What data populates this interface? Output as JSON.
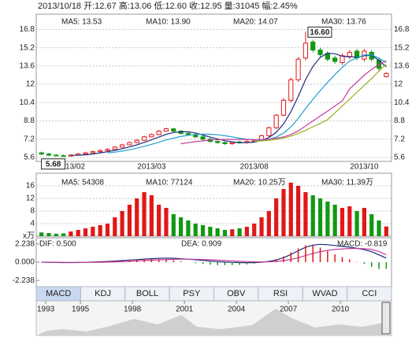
{
  "header": "2013/10/18 开:12.67 高:13.06 低:12.60 收:12.95 量:31045 幅:2.45%",
  "tabs": [
    "MACD",
    "KDJ",
    "BOLL",
    "PSY",
    "OBV",
    "RSI",
    "WVAD",
    "CCI"
  ],
  "timeline": {
    "xlim": [
      1992.45,
      2012.95
    ],
    "xticks": [
      1993,
      1995,
      1998,
      2001,
      2004,
      2007,
      2010
    ]
  },
  "chart_data": [
    {
      "type": "candlestick",
      "up_color": "#e01818",
      "down_color": "#119911",
      "tick_color": "#e01818",
      "grid": true,
      "categories": [
        null,
        null,
        null,
        null,
        "2013/02",
        null,
        null,
        null,
        null,
        null,
        null,
        null,
        null,
        null,
        null,
        "2013/03",
        null,
        null,
        null,
        null,
        null,
        null,
        null,
        null,
        null,
        null,
        null,
        null,
        null,
        "2013/08",
        null,
        null,
        null,
        null,
        null,
        null,
        null,
        null,
        null,
        null,
        null,
        null,
        null,
        null,
        "2013/10",
        null,
        null,
        null
      ],
      "open": [
        6.0,
        5.9,
        5.8,
        5.75,
        5.72,
        5.8,
        5.9,
        6.0,
        6.1,
        6.2,
        6.3,
        6.5,
        6.7,
        6.9,
        7.1,
        7.4,
        7.6,
        7.9,
        8.1,
        7.9,
        7.7,
        7.6,
        7.4,
        7.2,
        7.0,
        6.9,
        6.8,
        6.95,
        6.9,
        7.0,
        7.1,
        7.5,
        8.2,
        9.3,
        10.6,
        12.4,
        14.3,
        15.7,
        15.0,
        14.7,
        14.3,
        13.9,
        14.4,
        14.9,
        14.2,
        14.8,
        14.1,
        12.67
      ],
      "high": [
        6.1,
        6.0,
        5.9,
        5.85,
        5.9,
        6.0,
        6.1,
        6.2,
        6.3,
        6.4,
        6.6,
        6.8,
        7.0,
        7.2,
        7.5,
        7.7,
        8.0,
        8.2,
        8.2,
        8.0,
        7.8,
        7.7,
        7.5,
        7.3,
        7.1,
        7.0,
        7.0,
        7.05,
        7.1,
        7.2,
        7.6,
        8.3,
        9.4,
        10.8,
        12.6,
        14.4,
        16.6,
        15.9,
        15.2,
        14.9,
        14.5,
        14.7,
        15.0,
        15.1,
        15.1,
        15.0,
        14.3,
        13.06
      ],
      "low": [
        5.8,
        5.7,
        5.7,
        5.68,
        5.7,
        5.75,
        5.85,
        5.95,
        6.05,
        6.15,
        6.25,
        6.45,
        6.65,
        6.85,
        7.05,
        7.35,
        7.55,
        7.85,
        7.8,
        7.6,
        7.5,
        7.3,
        7.1,
        6.9,
        6.8,
        6.7,
        6.7,
        6.8,
        6.8,
        6.9,
        7.0,
        7.4,
        8.1,
        9.2,
        10.4,
        12.2,
        14.1,
        14.8,
        14.3,
        14.0,
        13.8,
        13.7,
        14.2,
        14.1,
        14.0,
        14.0,
        13.2,
        12.6
      ],
      "close": [
        5.9,
        5.8,
        5.75,
        5.7,
        5.8,
        5.9,
        6.0,
        6.1,
        6.2,
        6.3,
        6.5,
        6.7,
        6.9,
        7.1,
        7.4,
        7.6,
        7.9,
        8.1,
        7.9,
        7.7,
        7.6,
        7.4,
        7.2,
        7.0,
        6.9,
        6.8,
        6.9,
        6.9,
        7.0,
        7.1,
        7.5,
        8.2,
        9.3,
        10.6,
        12.4,
        14.2,
        15.6,
        15.0,
        14.6,
        14.2,
        14.0,
        14.5,
        14.8,
        14.3,
        14.9,
        14.2,
        13.4,
        12.95
      ],
      "ylim": [
        5.25,
        18.0
      ],
      "yticks": [
        5.6,
        7.2,
        8.8,
        10.4,
        12.0,
        13.6,
        15.2,
        16.8
      ],
      "annotations": [
        {
          "label": "16.60",
          "value": 16.6,
          "at": "high"
        },
        {
          "label": "5.68",
          "value": 5.68,
          "at": "low"
        }
      ],
      "series": [
        {
          "name": "MA5: 13.53",
          "color": "#1c2a7a",
          "values": [
            null,
            null,
            null,
            null,
            5.79,
            5.79,
            5.83,
            5.9,
            6.0,
            6.1,
            6.22,
            6.36,
            6.52,
            6.7,
            6.92,
            7.14,
            7.38,
            7.62,
            7.78,
            7.84,
            7.84,
            7.74,
            7.56,
            7.38,
            7.22,
            7.06,
            6.96,
            6.9,
            6.9,
            6.94,
            7.08,
            7.34,
            7.8,
            8.54,
            9.6,
            10.94,
            12.42,
            13.56,
            14.36,
            14.72,
            14.68,
            14.46,
            14.42,
            14.36,
            14.5,
            14.54,
            14.1,
            13.53
          ]
        },
        {
          "name": "MA10: 13.90",
          "color": "#1e9fd0",
          "values": [
            null,
            null,
            null,
            null,
            null,
            null,
            null,
            null,
            null,
            6.0,
            6.06,
            6.15,
            6.27,
            6.41,
            6.57,
            6.74,
            6.93,
            7.13,
            7.29,
            7.43,
            7.54,
            7.61,
            7.64,
            7.63,
            7.58,
            7.5,
            7.4,
            7.28,
            7.19,
            7.13,
            7.12,
            7.18,
            7.37,
            7.73,
            8.27,
            9.01,
            9.88,
            10.69,
            11.45,
            12.16,
            12.85,
            13.48,
            14.03,
            14.33,
            14.56,
            14.56,
            14.3,
            13.9
          ]
        },
        {
          "name": "MA20: 14.07",
          "color": "#c43c9c",
          "values": [
            null,
            null,
            null,
            null,
            null,
            null,
            null,
            null,
            null,
            null,
            null,
            null,
            null,
            null,
            null,
            null,
            null,
            null,
            null,
            6.8,
            6.89,
            6.98,
            7.05,
            7.11,
            7.16,
            7.18,
            7.18,
            7.17,
            7.16,
            7.16,
            7.16,
            7.2,
            7.27,
            7.4,
            7.6,
            7.92,
            8.35,
            8.79,
            9.23,
            9.65,
            10.1,
            10.55,
            11.6,
            12.2,
            12.8,
            13.3,
            13.75,
            14.07
          ]
        },
        {
          "name": "MA30: 13.76",
          "color": "#9cad1c",
          "values": [
            null,
            null,
            null,
            null,
            null,
            null,
            null,
            null,
            null,
            null,
            null,
            null,
            null,
            null,
            null,
            null,
            null,
            null,
            null,
            null,
            null,
            null,
            null,
            null,
            null,
            null,
            null,
            null,
            null,
            7.0,
            7.05,
            7.1,
            7.18,
            7.3,
            7.47,
            7.7,
            7.98,
            8.28,
            8.58,
            8.9,
            9.5,
            10.1,
            10.7,
            11.3,
            11.9,
            12.5,
            13.15,
            13.76
          ]
        }
      ]
    },
    {
      "type": "bar",
      "grid": true,
      "unit": "x万",
      "values": [
        1.2,
        1.0,
        0.8,
        0.9,
        1.5,
        2.0,
        2.5,
        3.0,
        3.5,
        4.0,
        6,
        8,
        10,
        12,
        14,
        13,
        10,
        9,
        7,
        6,
        5,
        4,
        3.5,
        3,
        2.5,
        2,
        2.2,
        2.5,
        3,
        4,
        6,
        8,
        12,
        15,
        17,
        16,
        14,
        13,
        12,
        11,
        10,
        9,
        9.5,
        8,
        9,
        7,
        5,
        3.1
      ],
      "ylim": [
        0,
        20
      ],
      "yticks": [
        4,
        8,
        12,
        16
      ],
      "legend": [
        {
          "name": "MA5: 54308",
          "color": "#1c2a7a"
        },
        {
          "name": "MA10: 77124",
          "color": "#1e9fd0"
        },
        {
          "name": "MA20: 10.25万",
          "color": "#c43c9c"
        },
        {
          "name": "MA30: 11.39万",
          "color": "#9cad1c"
        }
      ]
    },
    {
      "type": "macd",
      "grid": false,
      "up_color": "#e01818",
      "down_color": "#119911",
      "ylim": [
        -3,
        3
      ],
      "yticks": [
        {
          "value": 2.238,
          "label": "2.238"
        },
        {
          "value": 0,
          "label": "0.000"
        },
        {
          "value": -2.238,
          "label": "-2.238"
        }
      ],
      "series": [
        {
          "name": "DIF: 0.500",
          "color": "#1c2a7a",
          "kind": "line",
          "values": [
            0,
            -0.02,
            -0.04,
            -0.05,
            -0.05,
            -0.04,
            -0.02,
            0.01,
            0.05,
            0.09,
            0.14,
            0.2,
            0.26,
            0.32,
            0.38,
            0.43,
            0.47,
            0.5,
            0.48,
            0.43,
            0.37,
            0.3,
            0.22,
            0.14,
            0.07,
            0.01,
            -0.03,
            -0.05,
            -0.06,
            -0.05,
            0.0,
            0.1,
            0.28,
            0.55,
            0.95,
            1.4,
            1.85,
            2.1,
            2.2,
            2.15,
            2.05,
            1.95,
            1.85,
            1.7,
            1.55,
            1.3,
            0.9,
            0.5
          ]
        },
        {
          "name": "DEA: 0.909",
          "color": "#c43c9c",
          "kind": "line",
          "values": [
            0,
            0,
            -0.01,
            -0.02,
            -0.03,
            -0.03,
            -0.03,
            -0.02,
            -0.01,
            0.01,
            0.04,
            0.07,
            0.11,
            0.15,
            0.2,
            0.24,
            0.29,
            0.33,
            0.36,
            0.37,
            0.37,
            0.36,
            0.33,
            0.29,
            0.25,
            0.2,
            0.15,
            0.11,
            0.08,
            0.05,
            0.04,
            0.05,
            0.1,
            0.19,
            0.34,
            0.55,
            0.81,
            1.07,
            1.3,
            1.46,
            1.57,
            1.64,
            1.68,
            1.68,
            1.66,
            1.58,
            1.32,
            0.909
          ]
        },
        {
          "name": "MACD: -0.819",
          "color": "#333333",
          "kind": "bar",
          "values": [
            0,
            -0.04,
            -0.06,
            -0.06,
            -0.04,
            -0.02,
            0.02,
            0.06,
            0.12,
            0.16,
            0.2,
            0.26,
            0.3,
            0.34,
            0.36,
            0.38,
            0.36,
            0.34,
            0.24,
            0.12,
            0,
            -0.12,
            -0.22,
            -0.3,
            -0.36,
            -0.38,
            -0.36,
            -0.32,
            -0.28,
            -0.2,
            -0.08,
            0.1,
            0.36,
            0.72,
            1.22,
            1.7,
            2.08,
            2.06,
            1.8,
            1.38,
            0.96,
            0.62,
            0.34,
            0.04,
            -0.22,
            -0.56,
            -0.84,
            -0.819
          ]
        }
      ]
    }
  ]
}
